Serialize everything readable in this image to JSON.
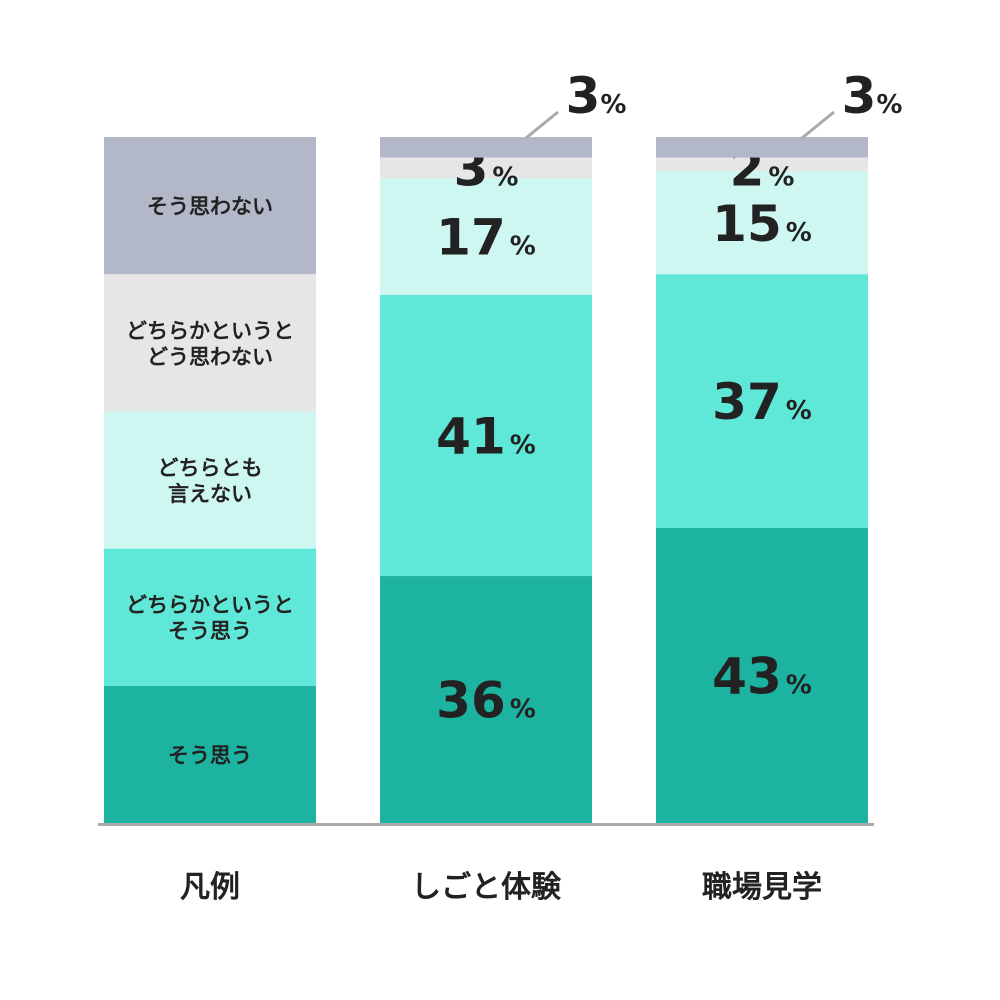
{
  "chart_data": {
    "type": "stacked-bar",
    "legend_label": "凡例",
    "categories": [
      "しごと体験",
      "職場見学"
    ],
    "series": [
      {
        "name": "そう思う",
        "color": "#1cb3a0",
        "values": [
          36,
          43
        ]
      },
      {
        "name": "どちらかというとそう思う",
        "color": "#5fe8d8",
        "values": [
          41,
          37
        ]
      },
      {
        "name": "どちらとも言えない",
        "color": "#cff7f1",
        "values": [
          17,
          15
        ]
      },
      {
        "name": "どちらかというとどう思わない",
        "color": "#e6e6e6",
        "values": [
          3,
          2
        ]
      },
      {
        "name": "そう思わない",
        "color": "#b2b8c8",
        "values": [
          3,
          3
        ]
      }
    ],
    "legend_lines": [
      [
        "そう思う"
      ],
      [
        "どちらかというと",
        "そう思う"
      ],
      [
        "どちらとも",
        "言えない"
      ],
      [
        "どちらかというと",
        "どう思わない"
      ],
      [
        "そう思わない"
      ]
    ],
    "value_suffix": "%",
    "axis_color": "#aaaaaa"
  }
}
